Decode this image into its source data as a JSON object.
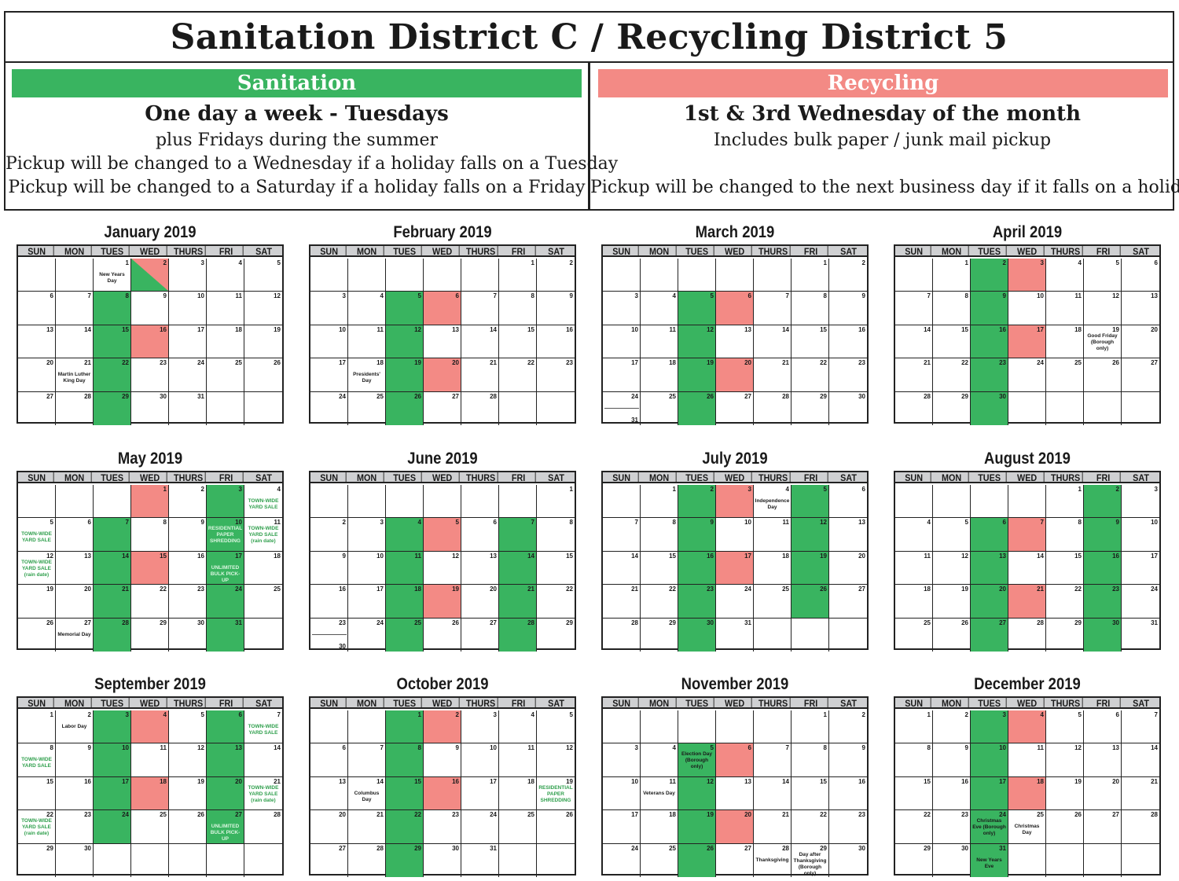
{
  "header": {
    "title": "Sanitation District C / Recycling District 5",
    "sanitation": {
      "label": "Sanitation",
      "line1": "One day a week - Tuesdays",
      "line2": "plus Fridays during the summer",
      "line3": "Pickup will be changed to a Wednesday if a holiday falls on a Tuesday",
      "line4": "Pickup will be changed to a Saturday if a holiday falls on a Friday"
    },
    "recycling": {
      "label": "Recycling",
      "line1": "1st & 3rd Wednesday of the month",
      "line2": "Includes bulk paper / junk mail pickup",
      "line3": "Pickup will be changed to the next business day if it falls on a holiday"
    }
  },
  "colors": {
    "sanitation": "#39b460",
    "recycling": "#f38a85",
    "header_gray": "#cfd0d2"
  },
  "weekdays": [
    "SUN",
    "MON",
    "TUES",
    "WED",
    "THURS",
    "FRI",
    "SAT"
  ],
  "months": [
    {
      "name": "January 2019",
      "start": 2,
      "days": 31,
      "san": [
        8,
        15,
        22,
        29
      ],
      "rec": [
        16
      ],
      "mixed": [
        2
      ],
      "notes": [
        {
          "d": 1,
          "t": "New Years Day",
          "c": "dark"
        },
        {
          "d": 21,
          "t": "Martin Luther King Day",
          "c": "dark"
        }
      ]
    },
    {
      "name": "February 2019",
      "start": 5,
      "days": 28,
      "san": [
        5,
        12,
        19,
        26
      ],
      "rec": [
        6,
        20
      ],
      "mixed": [],
      "notes": [
        {
          "d": 18,
          "t": "Presidents' Day",
          "c": "dark"
        }
      ]
    },
    {
      "name": "March 2019",
      "start": 5,
      "days": 31,
      "san": [
        5,
        12,
        19,
        26
      ],
      "rec": [
        6,
        20
      ],
      "mixed": [],
      "notes": []
    },
    {
      "name": "April 2019",
      "start": 1,
      "days": 30,
      "san": [
        2,
        9,
        16,
        23,
        30
      ],
      "rec": [
        3,
        17
      ],
      "mixed": [],
      "notes": [
        {
          "d": 19,
          "t": "Good Friday (Borough only)",
          "c": "dark"
        }
      ]
    },
    {
      "name": "May 2019",
      "start": 3,
      "days": 31,
      "san": [
        3,
        7,
        10,
        14,
        17,
        21,
        24,
        28,
        31
      ],
      "rec": [
        1,
        15
      ],
      "mixed": [],
      "notes": [
        {
          "d": 4,
          "t": "TOWN-WIDE YARD SALE",
          "c": "green"
        },
        {
          "d": 5,
          "t": "TOWN-WIDE YARD SALE",
          "c": "green"
        },
        {
          "d": 10,
          "t": "RESIDENTIAL PAPER SHREDDING",
          "c": "green"
        },
        {
          "d": 11,
          "t": "TOWN-WIDE YARD SALE (rain date)",
          "c": "green"
        },
        {
          "d": 12,
          "t": "TOWN-WIDE YARD SALE (rain date)",
          "c": "green"
        },
        {
          "d": 17,
          "t": "UNLIMITED BULK PICK-UP",
          "c": "green"
        },
        {
          "d": 27,
          "t": "Memorial Day",
          "c": "dark"
        }
      ]
    },
    {
      "name": "June 2019",
      "start": 6,
      "days": 30,
      "san": [
        4,
        7,
        11,
        14,
        18,
        21,
        25,
        28
      ],
      "rec": [
        5,
        19
      ],
      "mixed": [],
      "notes": []
    },
    {
      "name": "July 2019",
      "start": 1,
      "days": 31,
      "san": [
        2,
        5,
        9,
        12,
        16,
        19,
        23,
        26,
        30
      ],
      "rec": [
        3,
        17
      ],
      "mixed": [],
      "notes": [
        {
          "d": 4,
          "t": "Independence Day",
          "c": "dark"
        }
      ]
    },
    {
      "name": "August 2019",
      "start": 4,
      "days": 31,
      "san": [
        2,
        6,
        9,
        13,
        16,
        20,
        23,
        27,
        30
      ],
      "rec": [
        7,
        21
      ],
      "mixed": [],
      "notes": []
    },
    {
      "name": "September 2019",
      "start": 0,
      "days": 30,
      "san": [
        3,
        6,
        10,
        13,
        17,
        20,
        24,
        27
      ],
      "rec": [
        4,
        18
      ],
      "mixed": [],
      "notes": [
        {
          "d": 2,
          "t": "Labor Day",
          "c": "dark"
        },
        {
          "d": 7,
          "t": "TOWN-WIDE YARD SALE",
          "c": "green"
        },
        {
          "d": 8,
          "t": "TOWN-WIDE YARD SALE",
          "c": "green"
        },
        {
          "d": 21,
          "t": "TOWN-WIDE YARD SALE (rain date)",
          "c": "green"
        },
        {
          "d": 22,
          "t": "TOWN-WIDE YARD SALE (rain date)",
          "c": "green"
        },
        {
          "d": 27,
          "t": "UNLIMITED BULK PICK-UP",
          "c": "green"
        }
      ]
    },
    {
      "name": "October 2019",
      "start": 2,
      "days": 31,
      "san": [
        1,
        8,
        15,
        22,
        29
      ],
      "rec": [
        2,
        16
      ],
      "mixed": [],
      "notes": [
        {
          "d": 14,
          "t": "Columbus Day",
          "c": "dark"
        },
        {
          "d": 19,
          "t": "RESIDENTIAL PAPER SHREDDING",
          "c": "green"
        }
      ]
    },
    {
      "name": "November 2019",
      "start": 5,
      "days": 30,
      "san": [
        5,
        12,
        19,
        26
      ],
      "rec": [
        6,
        20
      ],
      "mixed": [],
      "notes": [
        {
          "d": 5,
          "t": "Election Day (Borough only)",
          "c": "dark"
        },
        {
          "d": 11,
          "t": "Veterans Day",
          "c": "dark"
        },
        {
          "d": 28,
          "t": "Thanksgiving",
          "c": "dark"
        },
        {
          "d": 29,
          "t": "Day after Thanksgiving (Borough only)",
          "c": "dark"
        }
      ]
    },
    {
      "name": "December 2019",
      "start": 0,
      "days": 31,
      "san": [
        3,
        10,
        17,
        24,
        31
      ],
      "rec": [
        4,
        18
      ],
      "mixed": [],
      "notes": [
        {
          "d": 24,
          "t": "Christmas Eve (Borough only)",
          "c": "dark"
        },
        {
          "d": 25,
          "t": "Christmas Day",
          "c": "dark"
        },
        {
          "d": 31,
          "t": "New Years Eve",
          "c": "dark"
        }
      ]
    }
  ]
}
